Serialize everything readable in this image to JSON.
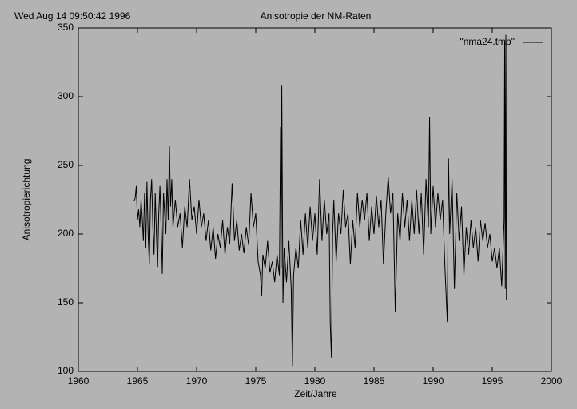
{
  "header": {
    "timestamp": "Wed Aug 14 09:50:42 1996"
  },
  "chart_data": {
    "type": "line",
    "title": "Anisotropie der NM-Raten",
    "x_label": "Zeit/Jahre",
    "y_label": "Anisotropierichtung",
    "xlim": [
      1960,
      2000
    ],
    "xticks": [
      1960,
      1965,
      1970,
      1975,
      1980,
      1985,
      1990,
      1995,
      2000
    ],
    "ylim": [
      100,
      350
    ],
    "yticks": [
      100,
      150,
      200,
      250,
      300,
      350
    ],
    "grid": false,
    "legend": "top-right",
    "series": [
      {
        "name": "\"nma24.tmp\"",
        "color": "#000000",
        "x": [
          1964.7,
          1964.8,
          1964.9,
          1965.0,
          1965.1,
          1965.2,
          1965.3,
          1965.4,
          1965.5,
          1965.6,
          1965.7,
          1965.8,
          1965.9,
          1966.0,
          1966.1,
          1966.2,
          1966.3,
          1966.4,
          1966.5,
          1966.6,
          1966.7,
          1966.8,
          1966.9,
          1967.0,
          1967.1,
          1967.2,
          1967.3,
          1967.4,
          1967.5,
          1967.6,
          1967.7,
          1967.8,
          1967.9,
          1968.0,
          1968.2,
          1968.4,
          1968.6,
          1968.8,
          1969.0,
          1969.2,
          1969.4,
          1969.6,
          1969.8,
          1970.0,
          1970.2,
          1970.4,
          1970.6,
          1970.8,
          1971.0,
          1971.2,
          1971.4,
          1971.6,
          1971.8,
          1972.0,
          1972.2,
          1972.4,
          1972.6,
          1972.8,
          1973.0,
          1973.2,
          1973.4,
          1973.6,
          1973.8,
          1974.0,
          1974.2,
          1974.4,
          1974.6,
          1974.8,
          1975.0,
          1975.2,
          1975.4,
          1975.5,
          1975.6,
          1975.8,
          1976.0,
          1976.2,
          1976.4,
          1976.6,
          1976.8,
          1977.0,
          1977.1,
          1977.15,
          1977.2,
          1977.3,
          1977.4,
          1977.6,
          1977.8,
          1978.0,
          1978.1,
          1978.2,
          1978.4,
          1978.6,
          1978.8,
          1979.0,
          1979.2,
          1979.4,
          1979.6,
          1979.8,
          1980.0,
          1980.2,
          1980.4,
          1980.6,
          1980.8,
          1981.0,
          1981.2,
          1981.3,
          1981.4,
          1981.5,
          1981.6,
          1981.8,
          1982.0,
          1982.2,
          1982.4,
          1982.6,
          1982.8,
          1983.0,
          1983.2,
          1983.4,
          1983.6,
          1983.8,
          1984.0,
          1984.2,
          1984.4,
          1984.6,
          1984.8,
          1985.0,
          1985.2,
          1985.4,
          1985.6,
          1985.8,
          1986.0,
          1986.2,
          1986.4,
          1986.6,
          1986.8,
          1987.0,
          1987.2,
          1987.4,
          1987.6,
          1987.8,
          1988.0,
          1988.2,
          1988.4,
          1988.6,
          1988.8,
          1989.0,
          1989.2,
          1989.4,
          1989.6,
          1989.7,
          1989.8,
          1990.0,
          1990.2,
          1990.4,
          1990.6,
          1990.8,
          1991.0,
          1991.2,
          1991.3,
          1991.4,
          1991.6,
          1991.8,
          1992.0,
          1992.2,
          1992.4,
          1992.6,
          1992.8,
          1993.0,
          1993.2,
          1993.4,
          1993.6,
          1993.8,
          1994.0,
          1994.2,
          1994.4,
          1994.6,
          1994.8,
          1995.0,
          1995.2,
          1995.4,
          1995.6,
          1995.8,
          1996.0,
          1996.05,
          1996.1,
          1996.15,
          1996.2
        ],
        "values": [
          224,
          226,
          235,
          210,
          218,
          205,
          225,
          212,
          195,
          230,
          190,
          238,
          200,
          178,
          225,
          240,
          205,
          185,
          230,
          200,
          176,
          215,
          235,
          205,
          171,
          230,
          215,
          200,
          240,
          210,
          264,
          220,
          240,
          205,
          225,
          205,
          215,
          190,
          220,
          205,
          240,
          210,
          220,
          200,
          225,
          205,
          215,
          195,
          210,
          188,
          205,
          182,
          200,
          190,
          210,
          185,
          205,
          193,
          237,
          195,
          210,
          188,
          200,
          186,
          205,
          192,
          230,
          205,
          215,
          180,
          170,
          155,
          185,
          175,
          195,
          172,
          180,
          165,
          185,
          170,
          278,
          175,
          308,
          150,
          190,
          165,
          195,
          160,
          104,
          170,
          190,
          175,
          210,
          185,
          215,
          190,
          220,
          195,
          215,
          185,
          240,
          195,
          225,
          200,
          215,
          135,
          110,
          200,
          225,
          180,
          215,
          200,
          232,
          205,
          215,
          178,
          210,
          190,
          230,
          205,
          225,
          210,
          230,
          195,
          220,
          200,
          228,
          205,
          225,
          178,
          215,
          242,
          215,
          230,
          143,
          215,
          195,
          230,
          205,
          225,
          195,
          225,
          200,
          232,
          200,
          230,
          185,
          240,
          205,
          285,
          200,
          235,
          205,
          230,
          210,
          225,
          175,
          136,
          255,
          200,
          240,
          160,
          230,
          195,
          220,
          170,
          205,
          185,
          210,
          190,
          205,
          180,
          210,
          195,
          208,
          190,
          200,
          180,
          190,
          175,
          190,
          162,
          210,
          340,
          160,
          345,
          152
        ]
      }
    ]
  }
}
